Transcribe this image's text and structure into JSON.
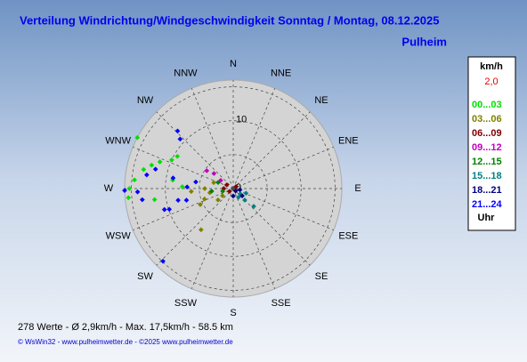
{
  "chart_data": {
    "type": "polar-scatter",
    "title": "Verteilung Windrichtung/Windgeschwindigkeit Sonntag / Montag, 08.12.2025",
    "subtitle": "Pulheim",
    "directions": [
      "N",
      "NNE",
      "NE",
      "ENE",
      "E",
      "ESE",
      "SE",
      "SSE",
      "S",
      "SSW",
      "SW",
      "WSW",
      "W",
      "WNW",
      "NW",
      "NNW"
    ],
    "rlim": [
      0,
      16
    ],
    "rticks": [
      0,
      10
    ],
    "rgrid": [
      5,
      10,
      15
    ],
    "legend_title": "km/h",
    "legend_value": "2,0",
    "legend_footer": "Uhr",
    "series": [
      {
        "name": "00...03",
        "color": "#00e000",
        "x": [
          298,
          270,
          275,
          282,
          290,
          265,
          295,
          278,
          262,
          286,
          300,
          272
        ],
        "values": [
          16,
          15.3,
          14.6,
          13.5,
          11.5,
          15.5,
          10,
          9,
          11.7,
          12.5,
          9.5,
          7.5
        ]
      },
      {
        "name": "03...06",
        "color": "#808000",
        "x": [
          270,
          244,
          287,
          233,
          218,
          266,
          236,
          250,
          260
        ],
        "values": [
          4.2,
          5.4,
          3,
          2.8,
          7.7,
          6.2,
          1.9,
          4.5,
          3.5
        ]
      },
      {
        "name": "06...09",
        "color": "#800000",
        "x": [
          299,
          233,
          56,
          270
        ],
        "values": [
          1.1,
          0.7,
          0.5,
          1.4
        ]
      },
      {
        "name": "09...12",
        "color": "#c000c0",
        "x": [
          304,
          308,
          303
        ],
        "values": [
          4.7,
          3.6,
          2.2
        ]
      },
      {
        "name": "12...15",
        "color": "#008000",
        "x": [
          292,
          263,
          256
        ],
        "values": [
          2.4,
          3.2,
          1.6
        ]
      },
      {
        "name": "15...18",
        "color": "#008080",
        "x": [
          127,
          131,
          135,
          149,
          110
        ],
        "values": [
          1.3,
          4,
          2.4,
          1.5,
          2
        ]
      },
      {
        "name": "18...21",
        "color": "#000080",
        "x": [
          135,
          129,
          180,
          100
        ],
        "values": [
          0.5,
          1.7,
          1.1,
          1
        ]
      },
      {
        "name": "21...24",
        "color": "#0000ff",
        "x": [
          316,
          313,
          224,
          252,
          258,
          279,
          268,
          269,
          284,
          253,
          272,
          280,
          280,
          256,
          263
        ],
        "values": [
          11.8,
          10.7,
          14.9,
          9.9,
          8.3,
          12.9,
          14.1,
          16,
          11.8,
          10.6,
          6.8,
          5.6,
          9,
          7.1,
          13.5
        ]
      }
    ],
    "notes": [
      "278 Werte   -   Ø 2,9km/h  -  Max. 17,5km/h   -   58.5 km",
      "© WsWin32  -  www.pulheimwetter.de  -  ©2025 www.pulheimwetter.de"
    ]
  }
}
